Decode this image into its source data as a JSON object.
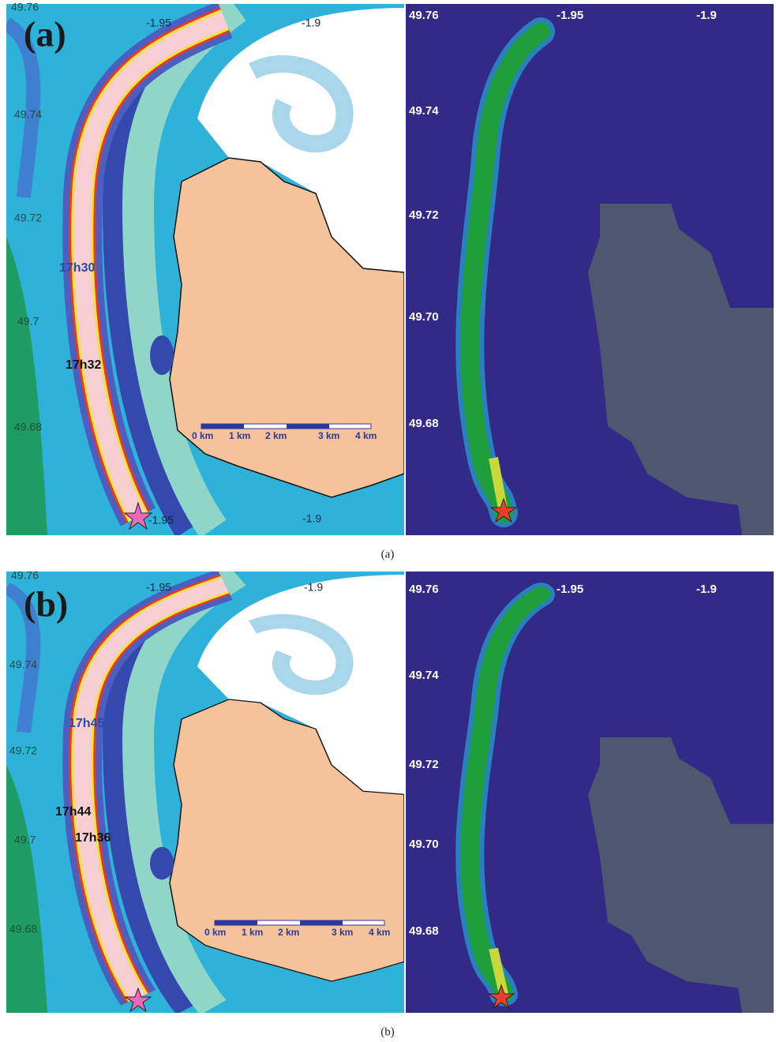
{
  "figure": {
    "panels": [
      {
        "label": "(a)",
        "caption": "(a)",
        "left_map": {
          "lat_labels": [
            "49.76",
            "49.74",
            "49.72",
            "49.7",
            "49.68"
          ],
          "lon_labels_top": [
            "-1.95",
            "-1.9"
          ],
          "lon_labels_bottom": [
            "-1.95",
            "-1.9"
          ],
          "time_labels": [
            "17h30",
            "17h32"
          ],
          "scale_labels": [
            "0 km",
            "1 km",
            "2 km",
            "3 km",
            "4 km"
          ]
        },
        "right_map": {
          "lat_labels": [
            "49.76",
            "49.74",
            "49.72",
            "49.70",
            "49.68"
          ],
          "lon_labels": [
            "-1.95",
            "-1.9"
          ]
        }
      },
      {
        "label": "(b)",
        "caption": "(b)",
        "left_map": {
          "lat_labels": [
            "49.76",
            "49.74",
            "49.72",
            "49.7",
            "49.68"
          ],
          "lon_labels_top": [
            "-1.95",
            "-1.9"
          ],
          "time_labels": [
            "17h45",
            "17h44",
            "17h36"
          ],
          "scale_labels": [
            "0 km",
            "1 km",
            "2 km",
            "3 km",
            "4 km"
          ]
        },
        "right_map": {
          "lat_labels": [
            "49.76",
            "49.74",
            "49.72",
            "49.70",
            "49.68"
          ],
          "lon_labels": [
            "-1.95",
            "-1.9"
          ]
        }
      }
    ]
  }
}
